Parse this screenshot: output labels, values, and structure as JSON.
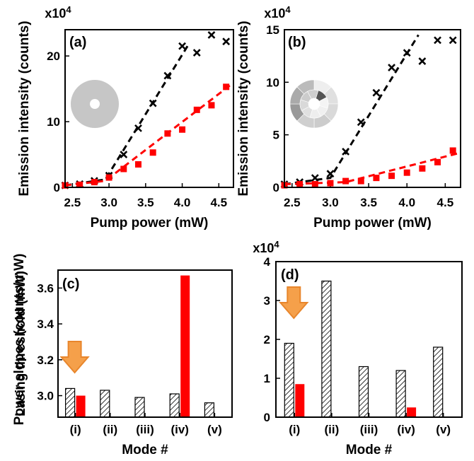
{
  "chart_data": [
    {
      "panel_label": "(a)",
      "type": "scatter",
      "xlabel": "Pump power (mW)",
      "ylabel": "Emission intensity (counts)",
      "y_multiplier": "x10",
      "y_multiplier_exp": "4",
      "xlim": [
        2.4,
        4.7
      ],
      "ylim": [
        0,
        24
      ],
      "xticks": [
        "2.5",
        "3.0",
        "3.5",
        "4.0",
        "4.5"
      ],
      "yticks": [
        "0",
        "10",
        "20"
      ],
      "inset": "uniform-disk",
      "colors": {
        "black_series": "#000000",
        "red_series": "#ff0000"
      },
      "series": [
        {
          "marker": "x",
          "color": "#000000",
          "x": [
            2.4,
            2.6,
            2.8,
            3.0,
            3.2,
            3.4,
            3.6,
            3.8,
            4.0,
            4.2,
            4.4,
            4.6
          ],
          "y": [
            0.3,
            0.5,
            1.0,
            1.8,
            5.0,
            9.0,
            12.8,
            17.0,
            21.5,
            20.5,
            23.2,
            22.2
          ]
        },
        {
          "marker": "square",
          "color": "#ff0000",
          "x": [
            2.4,
            2.6,
            2.8,
            3.0,
            3.2,
            3.4,
            3.6,
            3.8,
            4.0,
            4.2,
            4.4,
            4.6
          ],
          "y": [
            0.3,
            0.4,
            0.8,
            1.5,
            2.8,
            3.5,
            5.3,
            8.2,
            8.8,
            11.8,
            12.5,
            15.3
          ]
        }
      ],
      "fits": [
        {
          "color": "#000000",
          "x": [
            2.4,
            2.95,
            4.1
          ],
          "y": [
            0.3,
            1.2,
            22
          ]
        },
        {
          "color": "#ff0000",
          "x": [
            2.4,
            2.95,
            4.65
          ],
          "y": [
            0.3,
            1.0,
            15.5
          ]
        }
      ]
    },
    {
      "panel_label": "(b)",
      "type": "scatter",
      "xlabel": "Pump power (mW)",
      "ylabel": "Emission intensity (counts)",
      "y_multiplier": "x10",
      "y_multiplier_exp": "4",
      "xlim": [
        2.4,
        4.7
      ],
      "ylim": [
        0,
        15
      ],
      "xticks": [
        "2.5",
        "3.0",
        "3.5",
        "4.0",
        "4.5"
      ],
      "yticks": [
        "0",
        "5",
        "10",
        "15"
      ],
      "inset": "patterned-disk",
      "series": [
        {
          "marker": "x",
          "color": "#000000",
          "x": [
            2.4,
            2.6,
            2.8,
            3.0,
            3.2,
            3.4,
            3.6,
            3.8,
            4.0,
            4.2,
            4.4,
            4.6
          ],
          "y": [
            0.3,
            0.5,
            0.9,
            1.3,
            3.4,
            6.2,
            9.0,
            11.4,
            12.8,
            12.0,
            14.0,
            14.0
          ]
        },
        {
          "marker": "square",
          "color": "#ff0000",
          "x": [
            2.4,
            2.6,
            2.8,
            3.0,
            3.2,
            3.4,
            3.6,
            3.8,
            4.0,
            4.2,
            4.4,
            4.6
          ],
          "y": [
            0.2,
            0.3,
            0.3,
            0.4,
            0.6,
            0.6,
            0.9,
            1.1,
            1.4,
            1.8,
            2.4,
            3.5
          ]
        }
      ],
      "fits": [
        {
          "color": "#000000",
          "x": [
            2.4,
            3.0,
            4.15
          ],
          "y": [
            0.3,
            0.9,
            14.5
          ]
        },
        {
          "color": "#ff0000",
          "x": [
            2.4,
            3.2,
            4.7
          ],
          "y": [
            0.3,
            0.5,
            3.3
          ]
        }
      ]
    },
    {
      "panel_label": "(c)",
      "type": "bar",
      "xlabel": "Mode #",
      "ylabel": "Lasing threshold (mW)",
      "categories": [
        "(i)",
        "(ii)",
        "(iii)",
        "(iv)",
        "(v)"
      ],
      "ylim": [
        2.88,
        3.7
      ],
      "yticks": [
        "3.0",
        "3.2",
        "3.4",
        "3.6"
      ],
      "series": [
        {
          "style": "hatched",
          "values": [
            3.04,
            3.03,
            2.99,
            3.01,
            2.96
          ]
        },
        {
          "style": "solid",
          "color": "#ff0000",
          "values": [
            3.0,
            null,
            null,
            3.67,
            null
          ]
        }
      ],
      "annotation": "orange-down-arrow"
    },
    {
      "panel_label": "(d)",
      "type": "bar",
      "xlabel": "Mode #",
      "ylabel": "Power slopes (counts/mW)",
      "y_multiplier": "x10",
      "y_multiplier_exp": "4",
      "categories": [
        "(i)",
        "(ii)",
        "(iii)",
        "(iv)",
        "(v)"
      ],
      "ylim": [
        0,
        4
      ],
      "yticks": [
        "0",
        "1",
        "2",
        "3",
        "4"
      ],
      "series": [
        {
          "style": "hatched",
          "values": [
            1.9,
            3.5,
            1.3,
            1.2,
            1.8
          ]
        },
        {
          "style": "solid",
          "color": "#ff0000",
          "values": [
            0.85,
            null,
            null,
            0.25,
            null
          ]
        }
      ],
      "annotation": "orange-down-arrow"
    }
  ]
}
